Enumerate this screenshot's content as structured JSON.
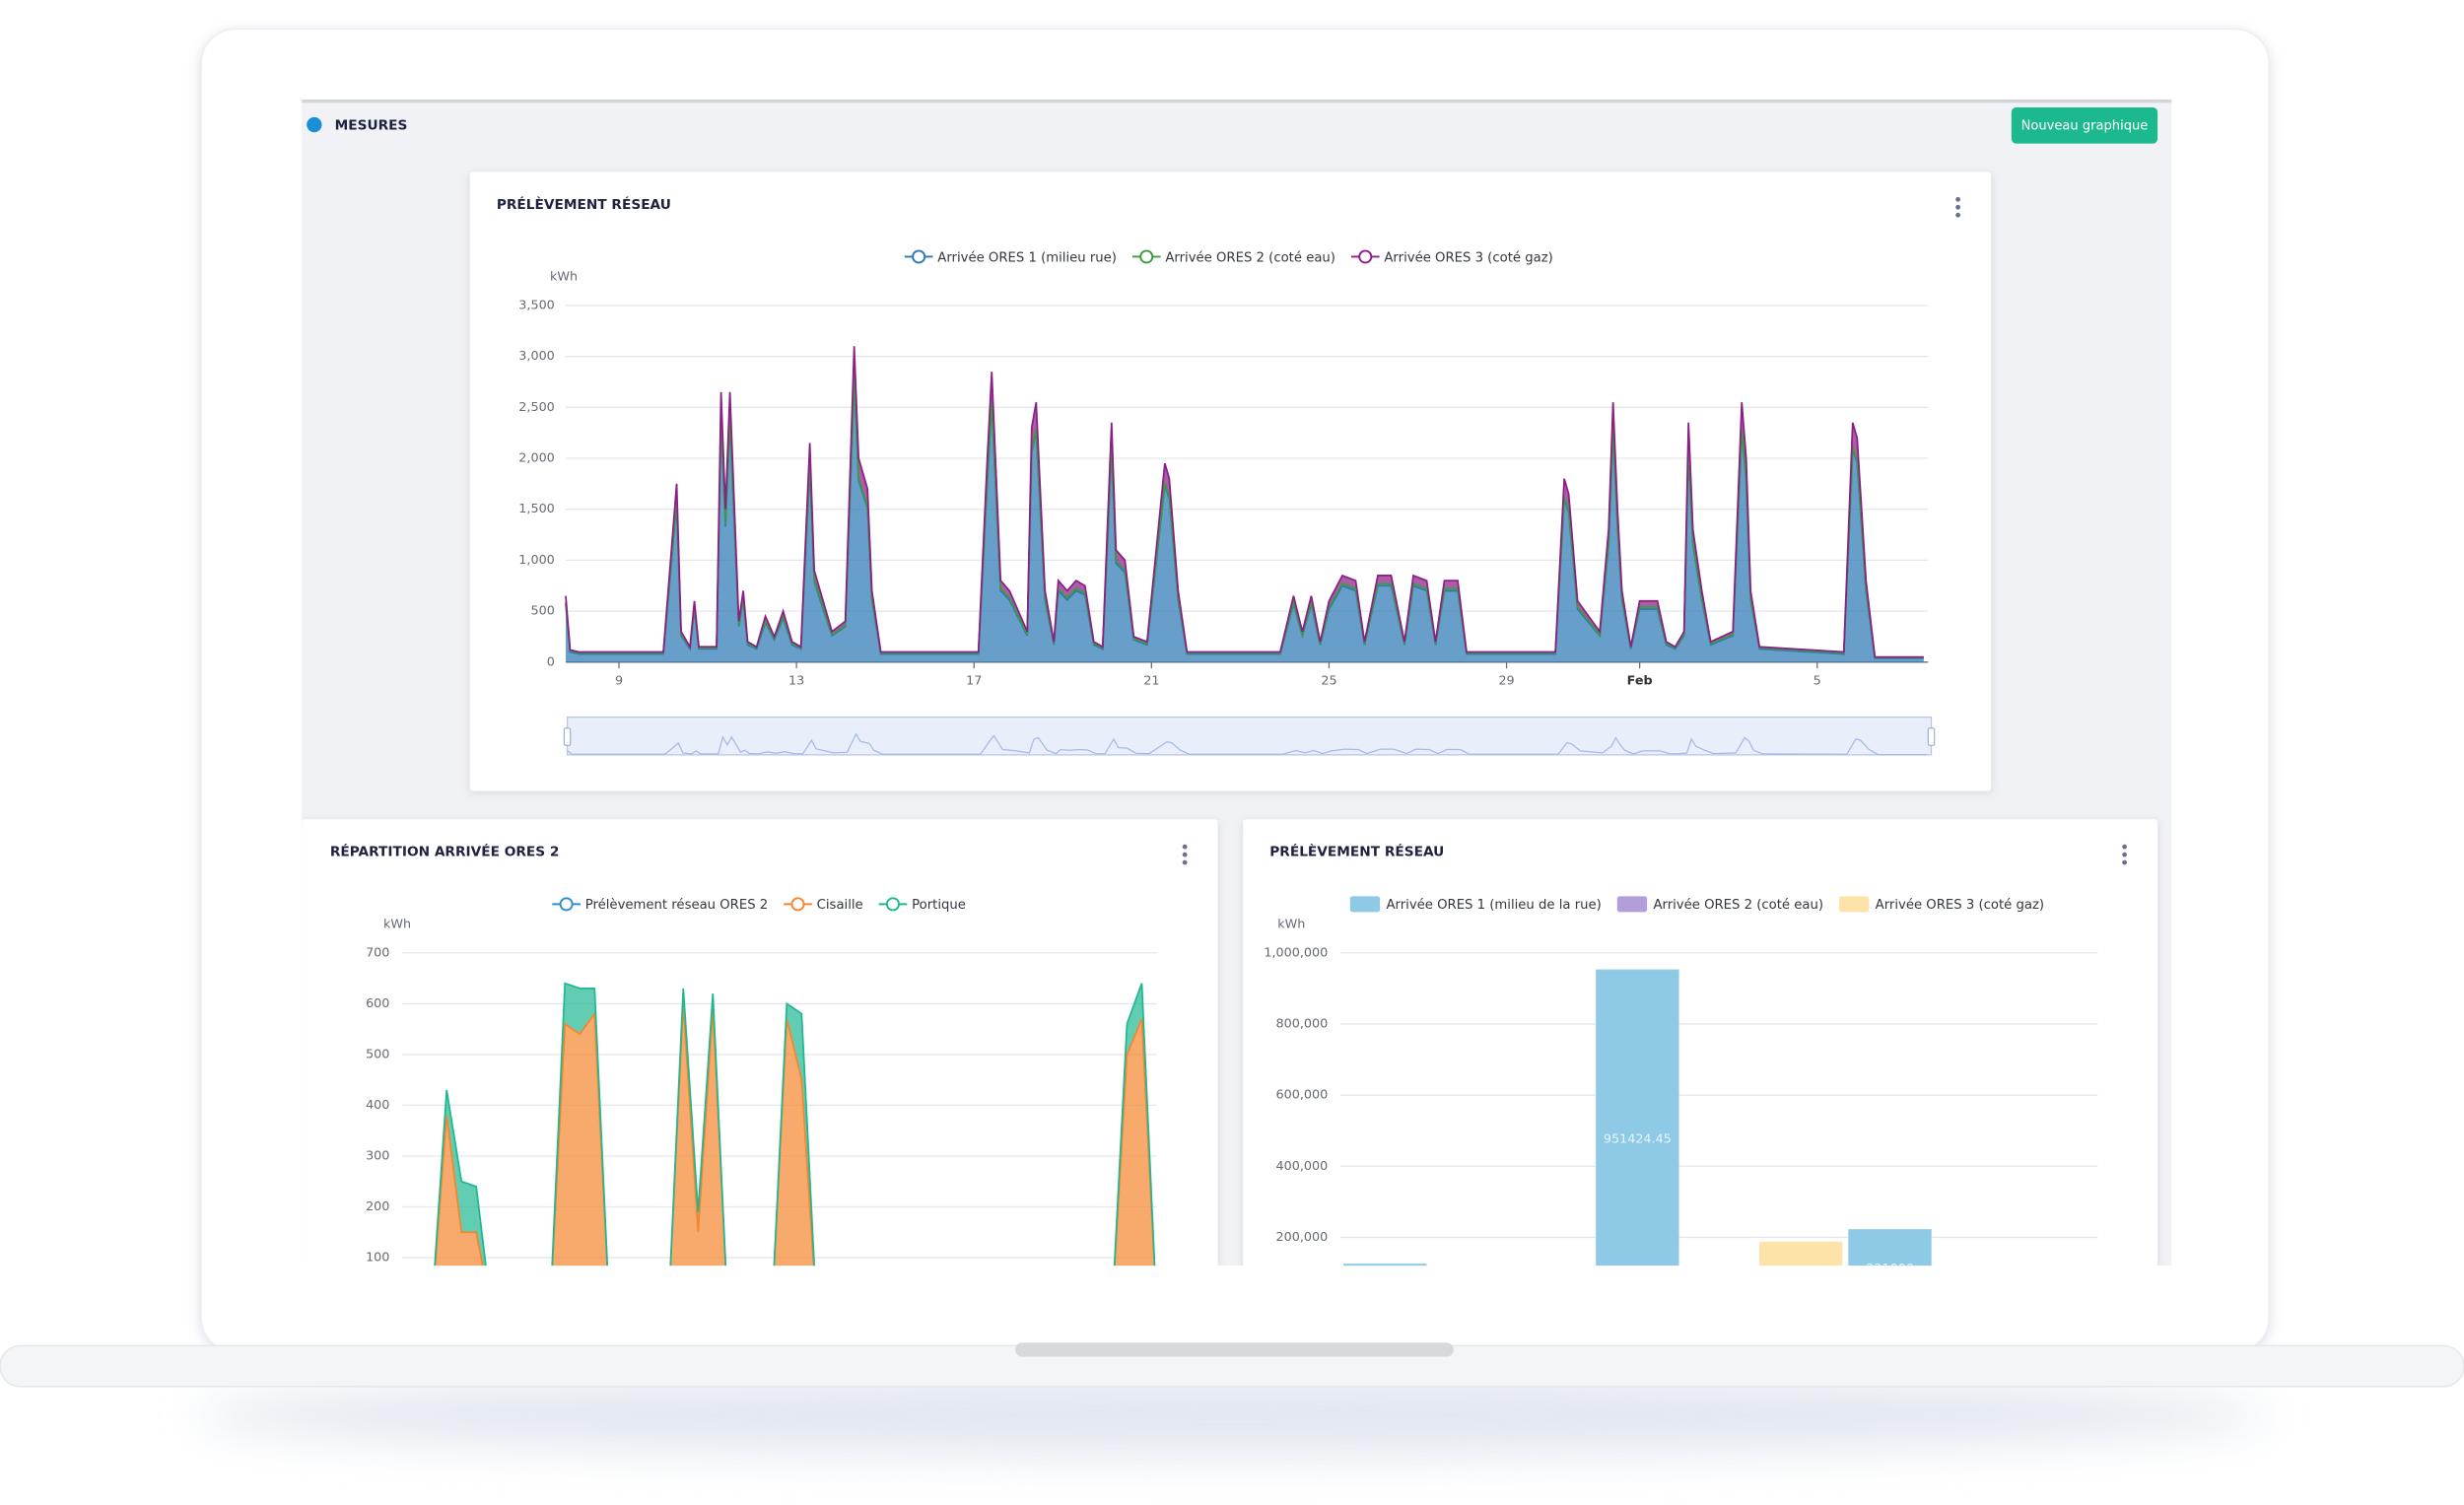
{
  "header": {
    "title": "MESURES",
    "button": "Nouveau graphique"
  },
  "chart_data": [
    {
      "type": "area",
      "title": "PRÉLÈVEMENT RÉSEAU",
      "y_label": "kWh",
      "stacked": true,
      "grid": true,
      "x": [
        7.8,
        7.9,
        8.1,
        10.0,
        10.3,
        10.4,
        10.6,
        10.7,
        10.8,
        11.2,
        11.3,
        11.4,
        11.5,
        11.7,
        11.8,
        11.9,
        12.1,
        12.3,
        12.5,
        12.7,
        12.9,
        13.1,
        13.3,
        13.4,
        13.6,
        13.8,
        14.1,
        14.3,
        14.4,
        14.6,
        14.7,
        14.9,
        17.1,
        17.3,
        17.4,
        17.6,
        17.8,
        18.2,
        18.3,
        18.4,
        18.6,
        18.8,
        18.9,
        19.1,
        19.3,
        19.5,
        19.7,
        19.9,
        20.1,
        20.2,
        20.4,
        20.6,
        20.9,
        21.3,
        21.4,
        21.6,
        21.8,
        23.9,
        24.2,
        24.4,
        24.6,
        24.8,
        25.0,
        25.3,
        25.6,
        25.8,
        26.1,
        26.4,
        26.7,
        26.9,
        27.2,
        27.4,
        27.6,
        27.9,
        28.1,
        28.3,
        30.1,
        30.3,
        30.4,
        30.6,
        31.1,
        31.3,
        31.4,
        31.5,
        31.6,
        31.8,
        32.0,
        32.2,
        32.4,
        32.6,
        32.8,
        33.0,
        33.1,
        33.2,
        33.4,
        33.6,
        34.1,
        34.3,
        34.4,
        34.5,
        34.7,
        36.6,
        36.8,
        36.9,
        37.1,
        37.3,
        38.4
      ],
      "xlim": [
        7.8,
        38.5
      ],
      "xticks": [
        9,
        13,
        17,
        21,
        25,
        29,
        {
          "value": 32,
          "label": "Feb"
        },
        {
          "value": 36,
          "label": "5"
        }
      ],
      "ylim": [
        0,
        3500
      ],
      "yticks": [
        0,
        500,
        {
          "value": 1000,
          "label": "1,000"
        },
        {
          "value": 1500,
          "label": "1,500"
        },
        {
          "value": 2000,
          "label": "2,000"
        },
        {
          "value": 2500,
          "label": "2,500"
        },
        {
          "value": 3000,
          "label": "3,000"
        },
        {
          "value": 3500,
          "label": "3,500"
        }
      ],
      "series": [
        {
          "name": "Arrivée  ORES 1 (milieu rue)",
          "color": "#2c78b6",
          "values": [
            570,
            100,
            80,
            80,
            1560,
            260,
            130,
            520,
            130,
            130,
            2370,
            1330,
            2370,
            350,
            610,
            170,
            130,
            390,
            220,
            430,
            170,
            130,
            1920,
            790,
            520,
            260,
            350,
            2770,
            1780,
            1510,
            610,
            80,
            80,
            1780,
            2540,
            700,
            610,
            260,
            2050,
            2270,
            610,
            170,
            700,
            610,
            700,
            660,
            170,
            130,
            2090,
            970,
            880,
            220,
            170,
            1740,
            1600,
            610,
            80,
            80,
            570,
            260,
            570,
            170,
            520,
            750,
            700,
            170,
            750,
            750,
            170,
            750,
            700,
            170,
            700,
            700,
            80,
            80,
            80,
            1600,
            1470,
            520,
            260,
            1150,
            2270,
            1330,
            610,
            130,
            520,
            520,
            520,
            170,
            130,
            260,
            2090,
            1150,
            610,
            170,
            260,
            2270,
            1780,
            610,
            130,
            80,
            2090,
            1960,
            700,
            40,
            40
          ]
        },
        {
          "name": "Arrivée ORES 2 (coté eau)",
          "color": "#3f9a3f",
          "values": [
            20,
            10,
            10,
            10,
            20,
            10,
            10,
            20,
            10,
            10,
            20,
            20,
            20,
            10,
            20,
            10,
            10,
            10,
            10,
            20,
            10,
            10,
            20,
            20,
            20,
            10,
            10,
            20,
            20,
            20,
            20,
            10,
            10,
            20,
            20,
            20,
            20,
            10,
            20,
            20,
            20,
            10,
            20,
            20,
            20,
            20,
            10,
            10,
            20,
            20,
            20,
            10,
            10,
            20,
            20,
            20,
            10,
            10,
            20,
            10,
            20,
            10,
            20,
            20,
            20,
            10,
            20,
            20,
            10,
            20,
            20,
            10,
            20,
            20,
            10,
            10,
            10,
            20,
            20,
            20,
            10,
            20,
            20,
            20,
            20,
            10,
            20,
            20,
            20,
            10,
            10,
            10,
            20,
            20,
            20,
            10,
            10,
            20,
            20,
            20,
            10,
            10,
            20,
            20,
            20,
            5,
            5
          ]
        },
        {
          "name": "Arrivée ORES 3 (coté gaz)",
          "color": "#8c1f86",
          "values": [
            60,
            10,
            10,
            10,
            170,
            30,
            10,
            60,
            10,
            10,
            260,
            150,
            260,
            40,
            70,
            20,
            10,
            50,
            20,
            50,
            20,
            10,
            210,
            90,
            60,
            30,
            40,
            310,
            200,
            170,
            70,
            10,
            10,
            200,
            290,
            80,
            70,
            30,
            230,
            260,
            70,
            20,
            80,
            70,
            80,
            70,
            20,
            10,
            240,
            110,
            100,
            20,
            20,
            190,
            180,
            70,
            10,
            10,
            60,
            30,
            60,
            20,
            60,
            80,
            80,
            20,
            80,
            80,
            20,
            80,
            80,
            20,
            80,
            80,
            10,
            10,
            10,
            180,
            160,
            60,
            30,
            130,
            260,
            150,
            70,
            10,
            60,
            60,
            60,
            20,
            10,
            30,
            240,
            130,
            70,
            20,
            30,
            260,
            200,
            70,
            10,
            10,
            240,
            220,
            80,
            5,
            5
          ]
        }
      ]
    },
    {
      "type": "area",
      "title": "RÉPARTITION ARRIVÉE ORES 2",
      "y_label": "kWh",
      "stacked": true,
      "grid": true,
      "categories": [
        null,
        null,
        null,
        null,
        null,
        null,
        null,
        null,
        null,
        null,
        null,
        null,
        null,
        null,
        null,
        null,
        null,
        null,
        null,
        null,
        null,
        null,
        null,
        null,
        null,
        null,
        null,
        null,
        null,
        null,
        null,
        null,
        null,
        null,
        null,
        null,
        null,
        null,
        null,
        null,
        null,
        null,
        null,
        null,
        null,
        null,
        null,
        null,
        null,
        null,
        null,
        null
      ],
      "ylim": [
        0,
        700
      ],
      "yticks": [
        100,
        200,
        300,
        400,
        500,
        600,
        700
      ],
      "series": [
        {
          "name": "Prélèvement réseau ORES 2",
          "color": "#2b8fd1",
          "values": [
            0,
            0,
            0,
            0,
            0,
            0,
            0,
            0,
            0,
            0,
            0,
            0,
            0,
            0,
            0,
            0,
            0,
            0,
            0,
            0,
            0,
            0,
            0,
            0,
            0,
            0,
            0,
            0,
            0,
            0,
            0,
            0,
            0,
            0,
            0,
            0,
            0,
            0,
            0,
            0,
            0,
            0,
            0,
            0,
            0,
            0,
            0,
            0,
            0,
            0,
            0,
            0
          ]
        },
        {
          "name": "Cisaille",
          "color": "#f5862e",
          "values": [
            0,
            0,
            0,
            380,
            150,
            150,
            0,
            0,
            0,
            0,
            0,
            560,
            540,
            580,
            0,
            0,
            0,
            0,
            0,
            600,
            150,
            590,
            0,
            0,
            0,
            0,
            570,
            450,
            0,
            0,
            0,
            0,
            0,
            0,
            0,
            0,
            0,
            0,
            0,
            0,
            0,
            0,
            0,
            0,
            0,
            0,
            0,
            0,
            0,
            500,
            570,
            0
          ]
        },
        {
          "name": "Portique",
          "color": "#1fb892",
          "values": [
            0,
            0,
            0,
            50,
            100,
            90,
            0,
            0,
            0,
            0,
            0,
            80,
            90,
            50,
            0,
            0,
            0,
            0,
            0,
            30,
            40,
            30,
            0,
            0,
            0,
            0,
            30,
            130,
            0,
            0,
            0,
            0,
            0,
            0,
            0,
            0,
            0,
            0,
            0,
            0,
            0,
            0,
            0,
            0,
            0,
            0,
            0,
            0,
            0,
            60,
            70,
            0
          ]
        }
      ]
    },
    {
      "type": "bar",
      "title": "PRÉLÈVEMENT RÉSEAU",
      "y_label": "kWh",
      "grid": true,
      "categories": [
        null,
        null,
        null
      ],
      "ylim": [
        0,
        1000000
      ],
      "yticks": [
        {
          "value": 200000,
          "label": "200,000"
        },
        {
          "value": 400000,
          "label": "400,000"
        },
        {
          "value": 600000,
          "label": "600,000"
        },
        {
          "value": 800000,
          "label": "800,000"
        },
        {
          "value": 1000000,
          "label": "1,000,000"
        }
      ],
      "series": [
        {
          "name": "Arrivée ORES 1 (milieu de la rue)",
          "color": "#8ecae6",
          "values": [
            124000,
            951424.45,
            221000
          ]
        },
        {
          "name": "Arrivée ORES 2 (coté eau)",
          "color": "#b39ddb",
          "values": [
            0,
            0,
            0
          ]
        },
        {
          "name": "Arrivée ORES 3 (coté gaz)",
          "color": "#fde3a8",
          "values": [
            0,
            186000,
            0
          ]
        }
      ]
    }
  ]
}
